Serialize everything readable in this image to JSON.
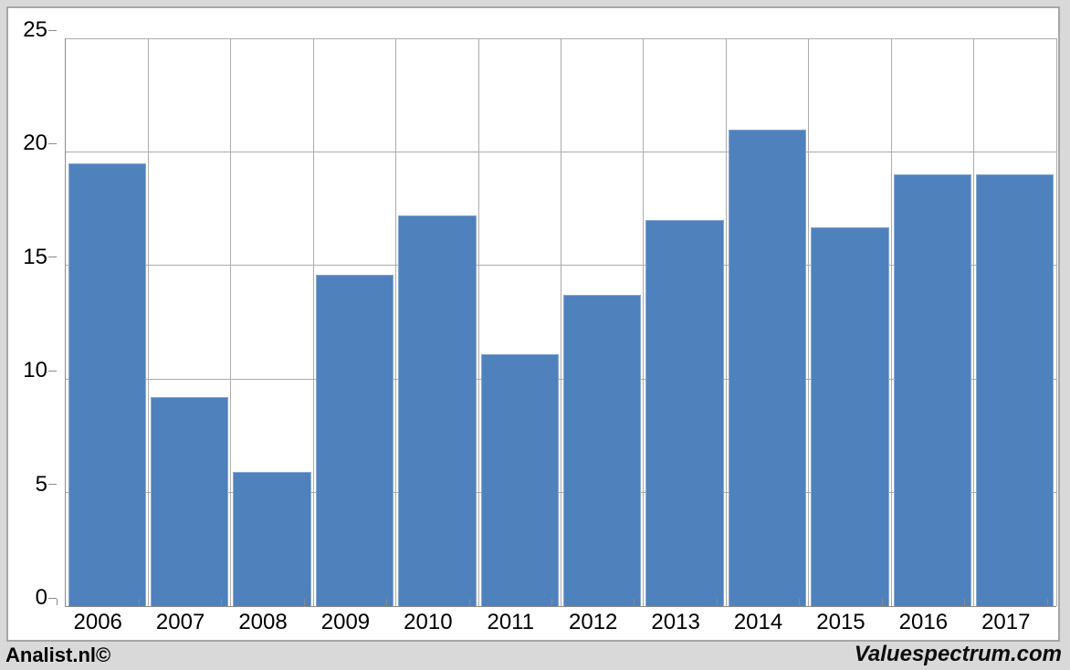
{
  "footer": {
    "left": "Analist.nl©",
    "right": "Valuespectrum.com"
  },
  "chart_data": {
    "type": "bar",
    "title": "",
    "xlabel": "",
    "ylabel": "",
    "categories": [
      "2006",
      "2007",
      "2008",
      "2009",
      "2010",
      "2011",
      "2012",
      "2013",
      "2014",
      "2015",
      "2016",
      "2017"
    ],
    "values": [
      19.5,
      9.2,
      5.9,
      14.6,
      17.2,
      11.1,
      13.7,
      17.0,
      21.0,
      16.7,
      19.0,
      19.0
    ],
    "ylim": [
      0,
      25
    ],
    "yticks": [
      0,
      5,
      10,
      15,
      20,
      25
    ],
    "grid": "horizontal-and-vertical",
    "legend_position": "none",
    "bar_color": "#4f81bd",
    "gridline_color": "#acacac",
    "axis_color": "#8a8a8a",
    "plot_background": "#ffffff",
    "outer_background": "#d9d9d9",
    "frame_border_color": "#a6a6a6"
  }
}
